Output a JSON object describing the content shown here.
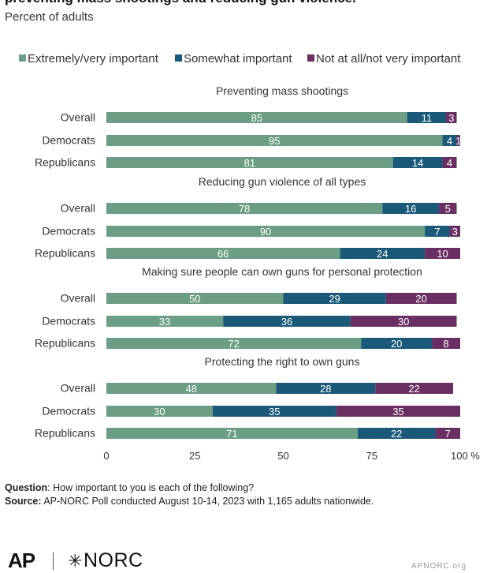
{
  "header": {
    "title": "preventing mass shootings and reducing gun violence.",
    "subtitle": "Percent of adults"
  },
  "legend": [
    {
      "label": "Extremely/very important",
      "color": "#6b9e84"
    },
    {
      "label": "Somewhat important",
      "color": "#1a5a78"
    },
    {
      "label": "Not at all/not very important",
      "color": "#6a2f62"
    }
  ],
  "chart_data": {
    "type": "bar",
    "orientation": "horizontal",
    "stacked": true,
    "xlim": [
      0,
      100
    ],
    "xticks": [
      "0",
      "25",
      "50",
      "75",
      "100 %"
    ],
    "grid": false,
    "legend_position": "top",
    "groups": [
      {
        "title": "Preventing mass shootings",
        "rows": [
          {
            "label": "Overall",
            "values": [
              85,
              11,
              3
            ]
          },
          {
            "label": "Democrats",
            "values": [
              95,
              4,
              1
            ]
          },
          {
            "label": "Republicans",
            "values": [
              81,
              14,
              4
            ]
          }
        ]
      },
      {
        "title": "Reducing gun violence of all types",
        "rows": [
          {
            "label": "Overall",
            "values": [
              78,
              16,
              5
            ]
          },
          {
            "label": "Democrats",
            "values": [
              90,
              7,
              3
            ]
          },
          {
            "label": "Republicans",
            "values": [
              66,
              24,
              10
            ]
          }
        ]
      },
      {
        "title": "Making sure people can own guns for personal protection",
        "rows": [
          {
            "label": "Overall",
            "values": [
              50,
              29,
              20
            ]
          },
          {
            "label": "Democrats",
            "values": [
              33,
              36,
              30
            ]
          },
          {
            "label": "Republicans",
            "values": [
              72,
              20,
              8
            ]
          }
        ]
      },
      {
        "title": "Protecting the right to own guns",
        "rows": [
          {
            "label": "Overall",
            "values": [
              48,
              28,
              22
            ]
          },
          {
            "label": "Democrats",
            "values": [
              30,
              35,
              35
            ]
          },
          {
            "label": "Republicans",
            "values": [
              71,
              22,
              7
            ]
          }
        ]
      }
    ]
  },
  "footer": {
    "question_label": "Question",
    "question_text": ": How important to you is each of the following?",
    "source_label": "Source:",
    "source_text": " AP-NORC Poll conducted August 10-14, 2023 with 1,165 adults nationwide."
  },
  "logos": {
    "ap": "AP",
    "norc": "NORC",
    "credit": "APNORC.org"
  }
}
